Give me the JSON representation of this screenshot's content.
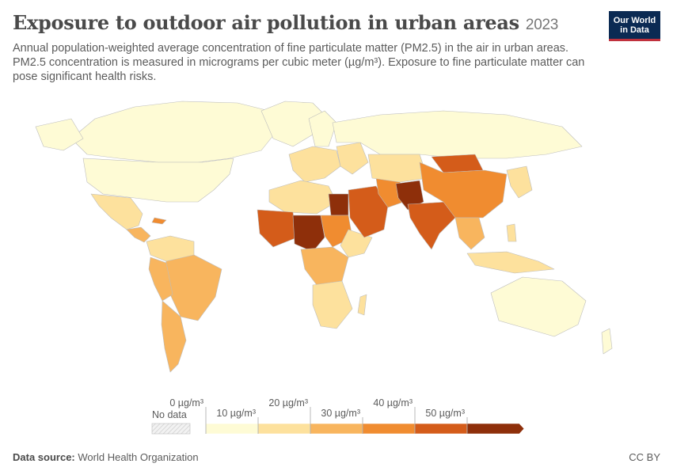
{
  "header": {
    "title": "Exposure to outdoor air pollution in urban areas",
    "year": "2023",
    "subtitle": "Annual population-weighted average concentration of fine particulate matter (PM2.5) in the air in urban areas. PM2.5 concentration is measured in micrograms per cubic meter (µg/m³). Exposure to fine particulate matter can pose significant health risks."
  },
  "logo": {
    "line1": "Our World",
    "line2": "in Data"
  },
  "legend": {
    "no_data_label": "No data",
    "tick_labels": [
      "0 µg/m³",
      "10 µg/m³",
      "20 µg/m³",
      "30 µg/m³",
      "40 µg/m³",
      "50 µg/m³"
    ],
    "bins": [
      {
        "from": 0,
        "to": 10,
        "color": "#fefbd5"
      },
      {
        "from": 10,
        "to": 20,
        "color": "#fde19d"
      },
      {
        "from": 20,
        "to": 30,
        "color": "#f8b55e"
      },
      {
        "from": 30,
        "to": 40,
        "color": "#f08c30"
      },
      {
        "from": 40,
        "to": 50,
        "color": "#d45c1a"
      },
      {
        "from": 50,
        "to": null,
        "color": "#8e2f0a"
      }
    ]
  },
  "footer": {
    "source_label": "Data source:",
    "source_value": "World Health Organization",
    "license": "CC BY"
  },
  "colors": {
    "no_data": "#e6e6e6",
    "border": "#bdbdbd",
    "brand": "#0b2a53",
    "brand_accent": "#c0313d"
  }
}
